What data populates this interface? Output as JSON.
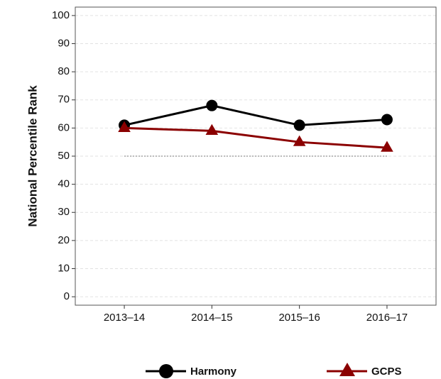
{
  "chart_data": {
    "type": "line",
    "y_label": "National Percentile Rank",
    "categories": [
      "2013–14",
      "2014–15",
      "2015–16",
      "2016–17"
    ],
    "series": [
      {
        "name": "Harmony",
        "color": "#000000",
        "marker": "circle",
        "values": [
          61,
          68,
          61,
          63
        ]
      },
      {
        "name": "GCPS",
        "color": "#8b0000",
        "marker": "triangle",
        "values": [
          60,
          59,
          55,
          53
        ]
      }
    ],
    "reference_line": 50,
    "ylim": [
      -3,
      103
    ],
    "yticks": [
      0,
      10,
      20,
      30,
      40,
      50,
      60,
      70,
      80,
      90,
      100
    ],
    "grid": true,
    "legend": "bottom"
  }
}
